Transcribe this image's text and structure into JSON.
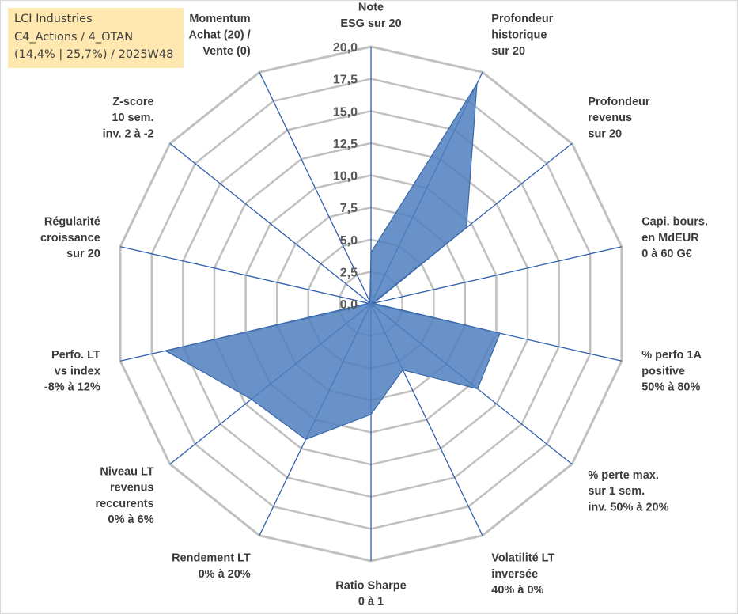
{
  "info_box": {
    "line1": "LCI Industries",
    "line2": "C4_Actions / 4_OTAN",
    "line3": "(14,4% | 25,7%) / 2025W48"
  },
  "colors": {
    "fill": "#4f7fbf",
    "stroke": "#3a68a8",
    "grid": "#c0c0c0",
    "spokes": "#2f5fb0",
    "info_bg": "#ffe7b0"
  },
  "chart_data": {
    "type": "radar",
    "title": "",
    "rmin": 0,
    "rmax": 20,
    "ticks": [
      "0,0",
      "2,5",
      "5,0",
      "7,5",
      "10,0",
      "12,5",
      "15,0",
      "17,5",
      "20,0"
    ],
    "grid": true,
    "categories": [
      [
        "Note",
        "ESG sur 20"
      ],
      [
        "Profondeur",
        "historique",
        "sur 20"
      ],
      [
        "Profondeur",
        "revenus",
        "sur 20"
      ],
      [
        "Capi. bours.",
        "en MdEUR",
        "0 à 60 G€"
      ],
      [
        "% perfo 1A",
        "positive",
        "50% à 80%"
      ],
      [
        "% perte max.",
        "sur 1 sem.",
        "inv. 50% à 20%"
      ],
      [
        "Volatilité LT",
        "inversée",
        "40% à 0%"
      ],
      [
        "Ratio Sharpe",
        "0 à 1"
      ],
      [
        "Rendement LT",
        "0% à 20%"
      ],
      [
        "Niveau LT",
        "revenus",
        "reccurents",
        "0% à 6%"
      ],
      [
        "Perfo. LT",
        "vs index",
        "-8% à 12%"
      ],
      [
        "Régularité",
        "croissance",
        "sur 20"
      ],
      [
        "Z-score",
        "10 sem.",
        "inv. 2 à -2"
      ],
      [
        "Momentum",
        "Achat (20) /",
        "Vente (0)"
      ]
    ],
    "values": [
      4.0,
      19.0,
      9.5,
      0.2,
      10.3,
      10.6,
      5.7,
      8.6,
      11.7,
      11.9,
      16.4,
      0.2,
      0.2,
      0.2
    ]
  }
}
